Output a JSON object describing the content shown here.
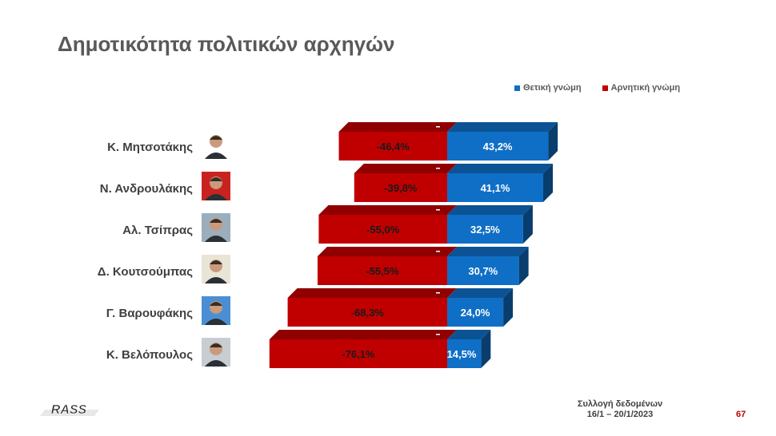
{
  "title": "Δημοτικότητα πολιτικών αρχηγών",
  "legend": {
    "positive_label": "Θετική γνώμη",
    "negative_label": "Αρνητική γνώμη"
  },
  "colors": {
    "positive": "#0f6fc6",
    "negative": "#c00000"
  },
  "chart_data": {
    "type": "bar",
    "orientation": "horizontal-diverging",
    "categories": [
      "Κ. Μητσοτάκης",
      "Ν. Ανδρουλάκης",
      "Αλ. Τσίπρας",
      "Δ. Κουτσούμπας",
      "Γ. Βαρουφάκης",
      "Κ. Βελόπουλος"
    ],
    "series": [
      {
        "name": "Θετική γνώμη",
        "values": [
          43.2,
          41.1,
          32.5,
          30.7,
          24.0,
          14.5
        ],
        "labels": [
          "43,2%",
          "41,1%",
          "32,5%",
          "30,7%",
          "24,0%",
          "14,5%"
        ]
      },
      {
        "name": "Αρνητική γνώμη",
        "values": [
          -46.4,
          -39.8,
          -55.0,
          -55.5,
          -68.3,
          -76.1
        ],
        "labels": [
          "-46,4%",
          "-39,8%",
          "-55,0%",
          "-55,5%",
          "-68,3%",
          "-76,1%"
        ]
      }
    ],
    "legend_position": "top-right",
    "style": "3d-bars"
  },
  "footer": {
    "logo_text": "RASS",
    "note_line1": "Συλλογή δεδομένων",
    "note_line2": "16/1 – 20/1/2023",
    "page_number": "67"
  }
}
